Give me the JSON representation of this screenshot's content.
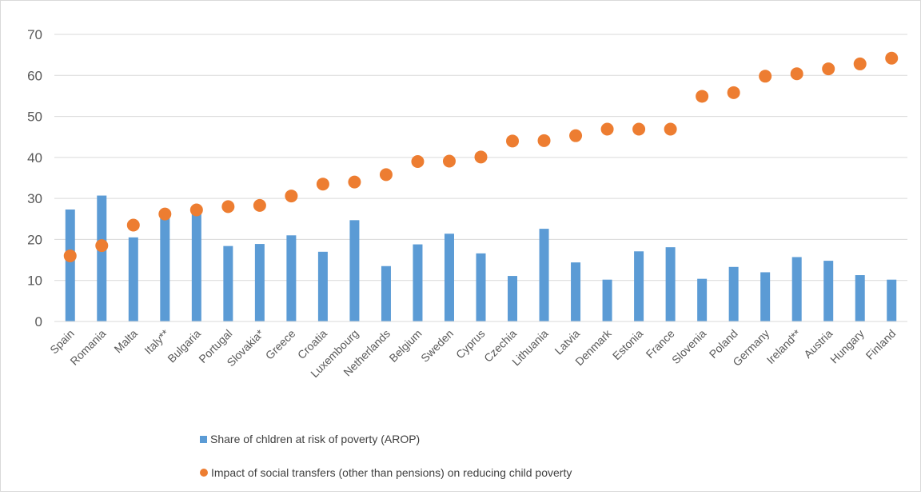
{
  "chart_data": {
    "type": "bar",
    "categories": [
      "Spain",
      "Romania",
      "Malta",
      "Italy**",
      "Bulgaria",
      "Portugal",
      "Slovakia*",
      "Greece",
      "Croatia",
      "Luxembourg",
      "Netherlands",
      "Belgium",
      "Sweden",
      "Cyprus",
      "Czechia",
      "Lithuania",
      "Latvia",
      "Denmark",
      "Estonia",
      "France",
      "Slovenia",
      "Poland",
      "Germany",
      "Ireland**",
      "Austria",
      "Hungary",
      "Finland"
    ],
    "series": [
      {
        "name": "Share of chldren at risk of poverty (AROP)",
        "type": "bar",
        "color": "#5b9bd5",
        "values": [
          27.3,
          30.7,
          20.5,
          25.8,
          26.5,
          18.4,
          18.9,
          21.0,
          17.0,
          24.7,
          13.5,
          18.8,
          21.4,
          16.6,
          11.1,
          22.6,
          14.4,
          10.2,
          17.1,
          18.1,
          10.4,
          13.3,
          12.0,
          15.7,
          14.8,
          11.3,
          10.2
        ]
      },
      {
        "name": "Impact of social transfers (other than pensions) on reducing child poverty",
        "type": "scatter",
        "color": "#ed7d31",
        "values": [
          16.0,
          18.5,
          23.5,
          26.2,
          27.2,
          28.0,
          28.3,
          30.6,
          33.5,
          34.0,
          35.8,
          39.0,
          39.1,
          40.1,
          44.0,
          44.1,
          45.3,
          46.9,
          46.9,
          46.9,
          54.9,
          55.8,
          59.8,
          60.4,
          61.6,
          62.8,
          64.2
        ]
      }
    ],
    "ylim": [
      0,
      70
    ],
    "yticks": [
      "0",
      "10",
      "20",
      "30",
      "40",
      "50",
      "60",
      "70"
    ],
    "grid": true,
    "legend_position": "bottom"
  }
}
